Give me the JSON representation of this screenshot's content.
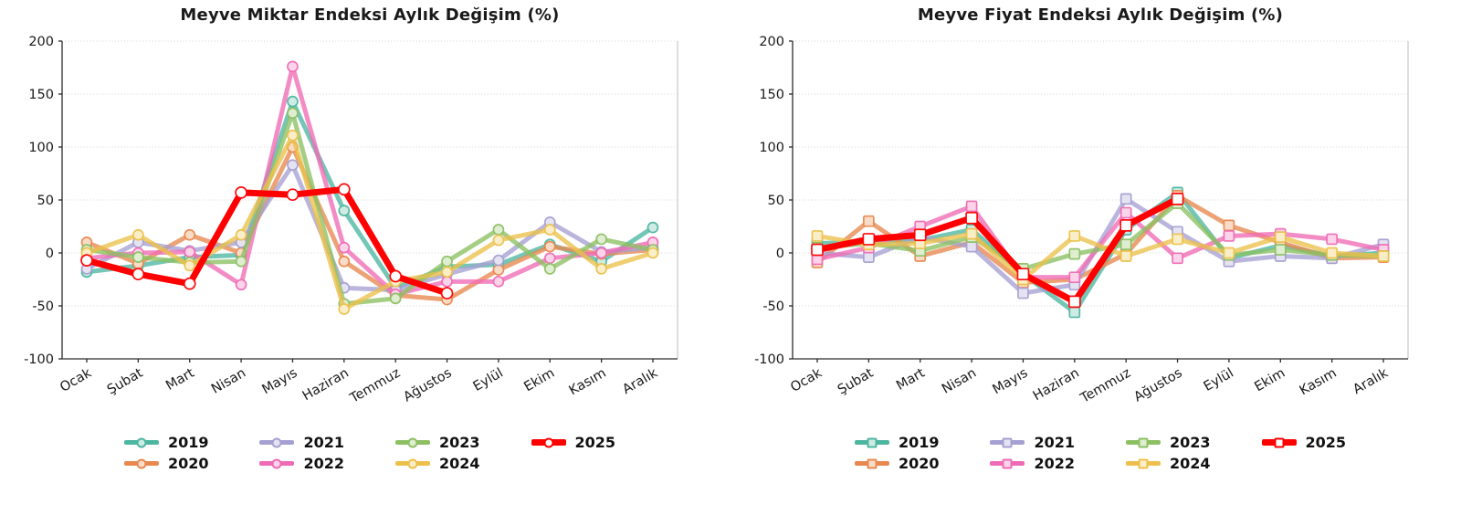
{
  "page": {
    "background": "#ffffff"
  },
  "chart_data": [
    {
      "type": "line",
      "title": "Meyve Miktar Endeksi Aylık Değişim (%)",
      "x_categories": [
        "Ocak",
        "Şubat",
        "Mart",
        "Nisan",
        "Mayıs",
        "Haziran",
        "Temmuz",
        "Ağustos",
        "Eylül",
        "Ekim",
        "Kasım",
        "Aralık"
      ],
      "ylim": [
        -100,
        200
      ],
      "y_ticks": [
        200,
        150,
        100,
        50,
        0,
        -50,
        -100
      ],
      "grid": "dotted-horizontal",
      "legend_position": "bottom-center",
      "marker": "circle",
      "series": [
        {
          "name": "2019",
          "color": "#4DB6A1",
          "marker_fill": "#CEEBE4",
          "line_width": 5,
          "values": [
            -18,
            -12,
            -4,
            -2,
            143,
            40,
            -33,
            -13,
            -11,
            8,
            -8,
            24
          ]
        },
        {
          "name": "2020",
          "color": "#E8884F",
          "marker_fill": "#F9DCC8",
          "line_width": 5,
          "values": [
            10,
            -10,
            17,
            0,
            100,
            -8,
            -40,
            -44,
            -16,
            6,
            -1,
            3
          ]
        },
        {
          "name": "2021",
          "color": "#A5A0D2",
          "marker_fill": "#E5E3F2",
          "line_width": 5,
          "values": [
            -15,
            10,
            2,
            10,
            83,
            -33,
            -35,
            -20,
            -7,
            29,
            1,
            5
          ]
        },
        {
          "name": "2022",
          "color": "#EF6BB5",
          "marker_fill": "#FBD4E9",
          "line_width": 5,
          "values": [
            -5,
            0,
            1,
            -30,
            176,
            5,
            -39,
            -27,
            -27,
            -5,
            0,
            10
          ]
        },
        {
          "name": "2023",
          "color": "#8CC063",
          "marker_fill": "#DFEDD0",
          "line_width": 5,
          "values": [
            3,
            -4,
            -9,
            -8,
            132,
            -48,
            -43,
            -8,
            22,
            -15,
            13,
            3
          ]
        },
        {
          "name": "2024",
          "color": "#ECC04A",
          "marker_fill": "#FAEEC9",
          "line_width": 5,
          "values": [
            0,
            17,
            -12,
            17,
            111,
            -53,
            -27,
            -18,
            12,
            22,
            -15,
            0
          ]
        },
        {
          "name": "2025",
          "color": "#FF0000",
          "marker_fill": "#FFFFFF",
          "line_width": 7,
          "values": [
            -7,
            -20,
            -29,
            57,
            55,
            60,
            -22,
            -38
          ]
        }
      ],
      "legend_columns": [
        [
          "2019",
          "2020"
        ],
        [
          "2021",
          "2022"
        ],
        [
          "2023",
          "2024"
        ],
        [
          "2025"
        ]
      ]
    },
    {
      "type": "line",
      "title": "Meyve Fiyat Endeksi Aylık Değişim (%)",
      "x_categories": [
        "Ocak",
        "Şubat",
        "Mart",
        "Nisan",
        "Mayıs",
        "Haziran",
        "Temmuz",
        "Ağustos",
        "Eylül",
        "Ekim",
        "Kasım",
        "Aralık"
      ],
      "ylim": [
        -100,
        200
      ],
      "y_ticks": [
        200,
        150,
        100,
        50,
        0,
        -50,
        -100
      ],
      "grid": "dotted-horizontal",
      "legend_position": "bottom-center",
      "marker": "square",
      "series": [
        {
          "name": "2019",
          "color": "#4DB6A1",
          "marker_fill": "#CEEBE4",
          "line_width": 5,
          "values": [
            9,
            10,
            12,
            22,
            -20,
            -56,
            22,
            57,
            -5,
            7,
            -3,
            0
          ]
        },
        {
          "name": "2020",
          "color": "#E8884F",
          "marker_fill": "#F9DCC8",
          "line_width": 5,
          "values": [
            -9,
            30,
            -3,
            10,
            -28,
            -25,
            -1,
            54,
            26,
            10,
            -5,
            -4
          ]
        },
        {
          "name": "2021",
          "color": "#A5A0D2",
          "marker_fill": "#E5E3F2",
          "line_width": 5,
          "values": [
            0,
            -4,
            15,
            6,
            -38,
            -30,
            51,
            20,
            -8,
            -3,
            -5,
            8
          ]
        },
        {
          "name": "2022",
          "color": "#EF6BB5",
          "marker_fill": "#FBD4E9",
          "line_width": 5,
          "values": [
            -6,
            5,
            25,
            44,
            -23,
            -23,
            38,
            -5,
            16,
            18,
            13,
            3
          ]
        },
        {
          "name": "2023",
          "color": "#8CC063",
          "marker_fill": "#DFEDD0",
          "line_width": 5,
          "values": [
            5,
            9,
            2,
            15,
            -15,
            -1,
            8,
            47,
            -2,
            3,
            -2,
            -3
          ]
        },
        {
          "name": "2024",
          "color": "#ECC04A",
          "marker_fill": "#FAEEC9",
          "line_width": 5,
          "values": [
            16,
            8,
            9,
            18,
            -25,
            16,
            -3,
            13,
            0,
            15,
            0,
            -3
          ]
        },
        {
          "name": "2025",
          "color": "#FF0000",
          "marker_fill": "#FFFFFF",
          "line_width": 7,
          "values": [
            3,
            13,
            17,
            33,
            -20,
            -46,
            26,
            51
          ]
        }
      ],
      "legend_columns": [
        [
          "2019",
          "2020"
        ],
        [
          "2021",
          "2022"
        ],
        [
          "2023",
          "2024"
        ],
        [
          "2025"
        ]
      ]
    }
  ]
}
